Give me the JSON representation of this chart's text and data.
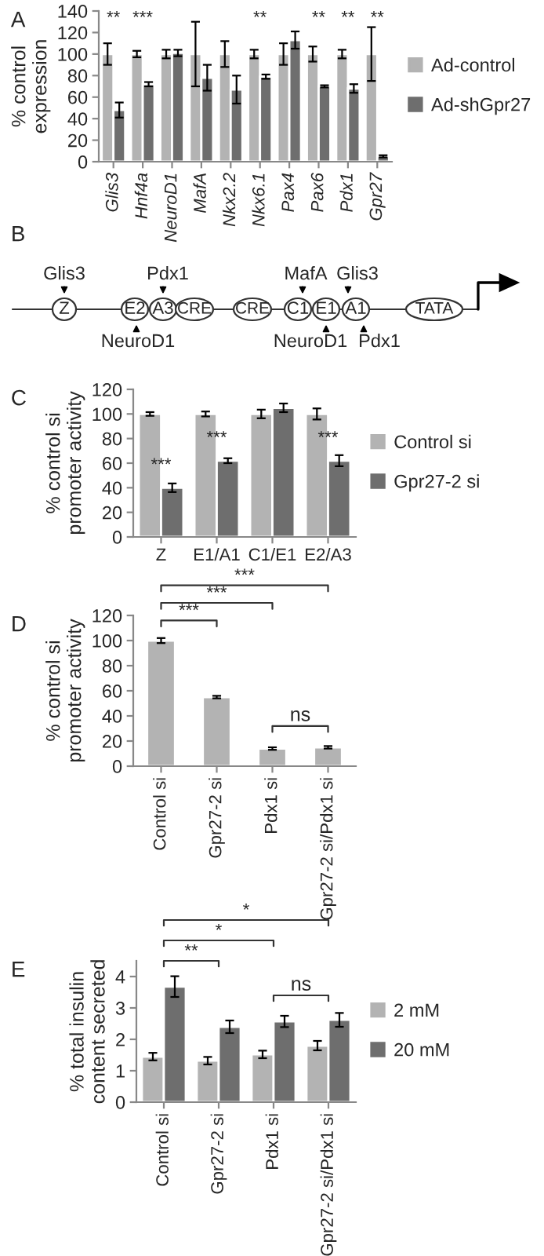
{
  "chart_data": [
    {
      "type": "bar",
      "title": "A",
      "ylabel": "% control\nexpression",
      "categories": [
        "Glis3",
        "Hnf4a",
        "NeuroD1",
        "MafA",
        "Nkx2.2",
        "Nkx6.1",
        "Pax4",
        "Pax6",
        "Pdx1",
        "Gpr27"
      ],
      "series": [
        {
          "name": "Ad-control",
          "color": "#b3b3b3",
          "values": [
            100,
            100,
            100,
            100,
            100,
            100,
            100,
            100,
            100,
            100
          ],
          "errors": [
            10,
            3,
            4,
            30,
            12,
            4,
            10,
            7,
            4,
            25
          ]
        },
        {
          "name": "Ad-shGpr27",
          "color": "#6e6e6e",
          "values": [
            48,
            72,
            101,
            78,
            67,
            79,
            113,
            70,
            68,
            5
          ],
          "errors": [
            7,
            2,
            3,
            12,
            13,
            2,
            8,
            1,
            4,
            1
          ]
        }
      ],
      "ylim": [
        0,
        140
      ],
      "yticks": [
        0,
        20,
        40,
        60,
        80,
        100,
        120,
        140
      ],
      "legend": "right",
      "grid": false,
      "annotations": [
        "**",
        "***",
        "**",
        "**",
        "**",
        "**"
      ]
    },
    {
      "type": "other",
      "title": "B",
      "annotations": [
        "Z",
        "E2",
        "A3",
        "CRE",
        "CRE",
        "C1",
        "E1",
        "A1",
        "TATA",
        "Glis3",
        "Pdx1",
        "MafA",
        "Glis3",
        "NeuroD1",
        "NeuroD1",
        "Pdx1"
      ]
    },
    {
      "type": "bar",
      "title": "C",
      "ylabel": "% control si\npromoter activity",
      "categories": [
        "Z",
        "E1/A1",
        "C1/E1",
        "E2/A3"
      ],
      "series": [
        {
          "name": "Control si",
          "color": "#b3b3b3",
          "values": [
            100,
            100,
            100,
            100
          ],
          "errors": [
            1.5,
            2,
            3.5,
            4.5
          ]
        },
        {
          "name": "Gpr27-2 si",
          "color": "#6e6e6e",
          "values": [
            40,
            62,
            105,
            62
          ],
          "errors": [
            3.5,
            2,
            3.5,
            4.5
          ]
        }
      ],
      "ylim": [
        0,
        120
      ],
      "yticks": [
        0,
        20,
        40,
        60,
        80,
        100,
        120
      ],
      "legend": "right",
      "grid": false,
      "annotations": [
        "***",
        "***",
        "***"
      ]
    },
    {
      "type": "bar",
      "title": "D",
      "ylabel": "% control si\npromoter activity",
      "categories": [
        "Control si",
        "Gpr27-2 si",
        "Pdx1 si",
        "Gpr27-2 si/Pdx1 si"
      ],
      "series": [
        {
          "color": "#b3b3b3",
          "values": [
            100,
            55,
            14,
            15
          ],
          "errors": [
            2,
            1,
            1,
            1
          ]
        }
      ],
      "ylim": [
        0,
        120
      ],
      "yticks": [
        0,
        20,
        40,
        60,
        80,
        100,
        120
      ],
      "grid": false,
      "annotations": [
        "***",
        "***",
        "***",
        "ns"
      ]
    },
    {
      "type": "bar",
      "title": "E",
      "ylabel": "% total insulin\ncontent secreted",
      "categories": [
        "Control si",
        "Gpr27-2 si",
        "Pdx1 si",
        "Gpr27-2 si/Pdx1 si"
      ],
      "series": [
        {
          "name": "2 mM",
          "color": "#b3b3b3",
          "values": [
            1.45,
            1.32,
            1.52,
            1.8
          ],
          "errors": [
            0.12,
            0.12,
            0.12,
            0.15
          ]
        },
        {
          "name": "20 mM",
          "color": "#6e6e6e",
          "values": [
            3.68,
            2.4,
            2.57,
            2.62
          ],
          "errors": [
            0.33,
            0.2,
            0.18,
            0.22
          ]
        }
      ],
      "ylim": [
        0,
        4.5
      ],
      "yticks": [
        0,
        1,
        2,
        3,
        4
      ],
      "legend": "right",
      "grid": false,
      "annotations": [
        "**",
        "*",
        "*",
        "ns"
      ]
    }
  ]
}
